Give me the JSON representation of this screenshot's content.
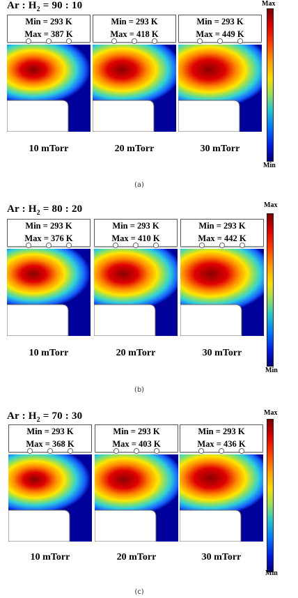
{
  "groups": [
    {
      "title_prefix": "Ar : H",
      "title_sub": "2",
      "title_suffix": " = 90 : 10",
      "caption": "(a)",
      "panels": [
        {
          "min": "Min = 293 K",
          "max": "Max = 387 K",
          "label": "10 mTorr"
        },
        {
          "min": "Min = 293 K",
          "max": "Max = 418 K",
          "label": "20 mTorr"
        },
        {
          "min": "Min = 293 K",
          "max": "Max = 449 K",
          "label": "30 mTorr"
        }
      ],
      "colorbar": {
        "max": "Max",
        "min": "Min"
      }
    },
    {
      "title_prefix": "Ar : H",
      "title_sub": "2",
      "title_suffix": " = 80 : 20",
      "caption": "(b)",
      "panels": [
        {
          "min": "Min = 293 K",
          "max": "Max = 376 K",
          "label": "10 mTorr"
        },
        {
          "min": "Min = 293 K",
          "max": "Max = 410 K",
          "label": "20 mTorr"
        },
        {
          "min": "Min = 293 K",
          "max": "Max = 442 K",
          "label": "30 mTorr"
        }
      ],
      "colorbar": {
        "max": "Max",
        "min": "Min"
      }
    },
    {
      "title_prefix": "Ar : H",
      "title_sub": "2",
      "title_suffix": " = 70 : 30",
      "caption": "(c)",
      "panels": [
        {
          "min": "Min = 293 K",
          "max": "Max = 368 K",
          "label": "10 mTorr"
        },
        {
          "min": "Min = 293 K",
          "max": "Max = 403 K",
          "label": "20 mTorr"
        },
        {
          "min": "Min = 293 K",
          "max": "Max = 436 K",
          "label": "30 mTorr"
        }
      ],
      "colorbar": {
        "max": "Max",
        "min": "Min"
      }
    }
  ],
  "colors": {
    "hot_core": "#8a0000",
    "hot": "#e00000",
    "orange": "#ff8c00",
    "yellow": "#ffe600",
    "green": "#8fe060",
    "cyan": "#30d0d8",
    "blue": "#1460ff",
    "cold": "#00009a"
  }
}
